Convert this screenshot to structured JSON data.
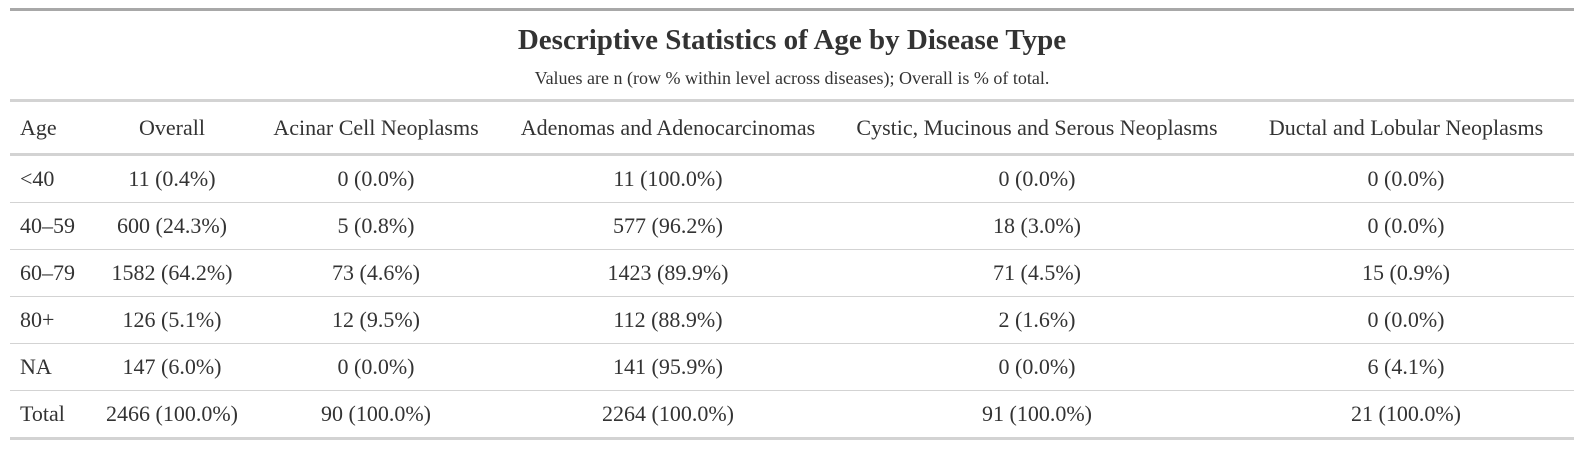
{
  "table": {
    "title": "Descriptive Statistics of Age by Disease Type",
    "subtitle": "Values are n (row % within level across diseases); Overall is % of total.",
    "columns": [
      "Age",
      "Overall",
      "Acinar Cell Neoplasms",
      "Adenomas and Adenocarcinomas",
      "Cystic, Mucinous and Serous Neoplasms",
      "Ductal and Lobular Neoplasms"
    ],
    "rows": [
      [
        "<40",
        "11 (0.4%)",
        "0 (0.0%)",
        "11 (100.0%)",
        "0 (0.0%)",
        "0 (0.0%)"
      ],
      [
        "40–59",
        "600 (24.3%)",
        "5 (0.8%)",
        "577 (96.2%)",
        "18 (3.0%)",
        "0 (0.0%)"
      ],
      [
        "60–79",
        "1582 (64.2%)",
        "73 (4.6%)",
        "1423 (89.9%)",
        "71 (4.5%)",
        "15 (0.9%)"
      ],
      [
        "80+",
        "126 (5.1%)",
        "12 (9.5%)",
        "112 (88.9%)",
        "2 (1.6%)",
        "0 (0.0%)"
      ],
      [
        "NA",
        "147 (6.0%)",
        "0 (0.0%)",
        "141 (95.9%)",
        "0 (0.0%)",
        "6 (4.1%)"
      ],
      [
        "Total",
        "2466 (100.0%)",
        "90 (100.0%)",
        "2264 (100.0%)",
        "91 (100.0%)",
        "21 (100.0%)"
      ]
    ]
  },
  "chart_data": {
    "type": "table",
    "title": "Descriptive Statistics of Age by Disease Type",
    "subtitle": "Values are n (row % within level across diseases); Overall is % of total.",
    "columns": [
      "Age",
      "Overall",
      "Acinar Cell Neoplasms",
      "Adenomas and Adenocarcinomas",
      "Cystic, Mucinous and Serous Neoplasms",
      "Ductal and Lobular Neoplasms"
    ],
    "rows": [
      [
        "<40",
        "11 (0.4%)",
        "0 (0.0%)",
        "11 (100.0%)",
        "0 (0.0%)",
        "0 (0.0%)"
      ],
      [
        "40–59",
        "600 (24.3%)",
        "5 (0.8%)",
        "577 (96.2%)",
        "18 (3.0%)",
        "0 (0.0%)"
      ],
      [
        "60–79",
        "1582 (64.2%)",
        "73 (4.6%)",
        "1423 (89.9%)",
        "71 (4.5%)",
        "15 (0.9%)"
      ],
      [
        "80+",
        "126 (5.1%)",
        "12 (9.5%)",
        "112 (88.9%)",
        "2 (1.6%)",
        "0 (0.0%)"
      ],
      [
        "NA",
        "147 (6.0%)",
        "0 (0.0%)",
        "141 (95.9%)",
        "0 (0.0%)",
        "6 (4.1%)"
      ],
      [
        "Total",
        "2466 (100.0%)",
        "90 (100.0%)",
        "2264 (100.0%)",
        "91 (100.0%)",
        "21 (100.0%)"
      ]
    ]
  }
}
